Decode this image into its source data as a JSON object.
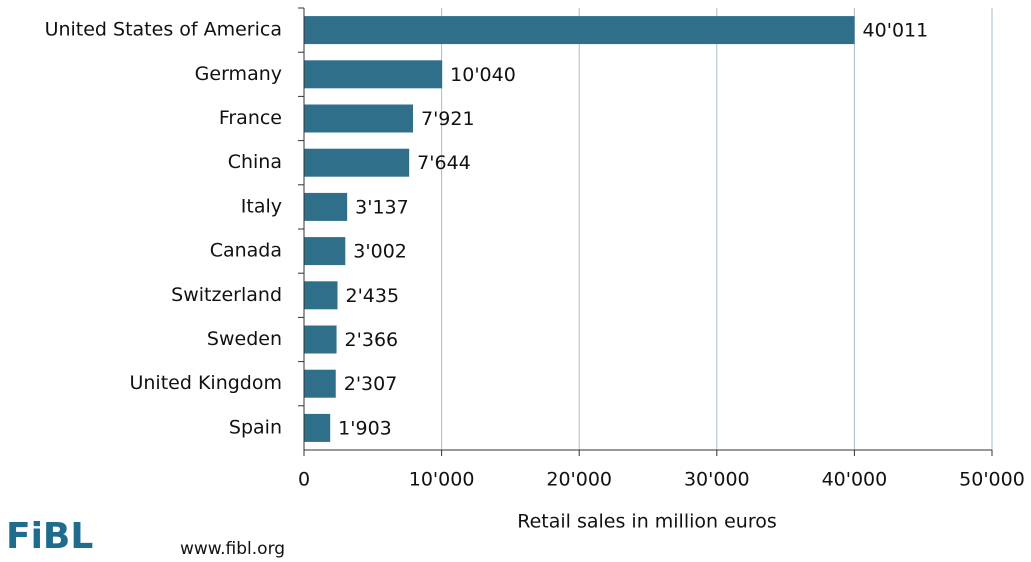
{
  "chart_data": {
    "type": "barh",
    "categories": [
      "United States of America",
      "Germany",
      "France",
      "China",
      "Italy",
      "Canada",
      "Switzerland",
      "Sweden",
      "United Kingdom",
      "Spain"
    ],
    "values": [
      40011,
      10040,
      7921,
      7644,
      3137,
      3002,
      2435,
      2366,
      2307,
      1903
    ],
    "value_labels": [
      "40'011",
      "10'040",
      "7'921",
      "7'644",
      "3'137",
      "3'002",
      "2'435",
      "2'366",
      "2'307",
      "1'903"
    ],
    "color": "#2f6f89",
    "xlabel": "Retail sales in million euros",
    "xlim": [
      0,
      50000
    ],
    "xticks": [
      0,
      {
        "value": 10000,
        "label": "10'000"
      },
      {
        "value": 20000,
        "label": "20'000"
      },
      {
        "value": 30000,
        "label": "30'000"
      },
      {
        "value": 40000,
        "label": "40'000"
      },
      {
        "value": 50000,
        "label": "50'000"
      }
    ],
    "grid": true,
    "logo": "FiBL",
    "source": "www.fibl.org"
  }
}
